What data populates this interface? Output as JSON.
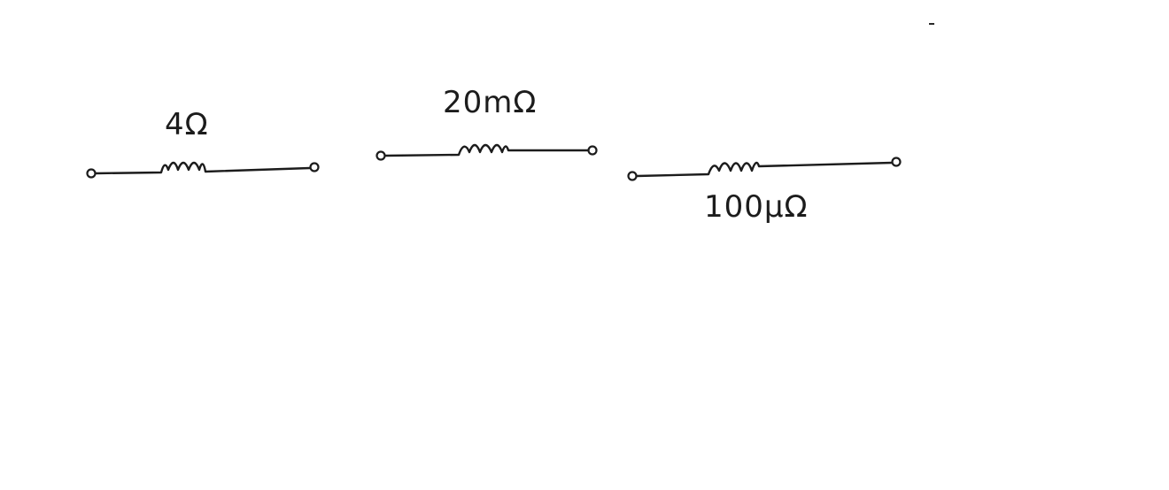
{
  "resistors": [
    {
      "label": "4Ω"
    },
    {
      "label": "20mΩ"
    },
    {
      "label": "100μΩ"
    }
  ],
  "colors": {
    "ink": "#1c1c1c",
    "paper": "#ffffff"
  }
}
